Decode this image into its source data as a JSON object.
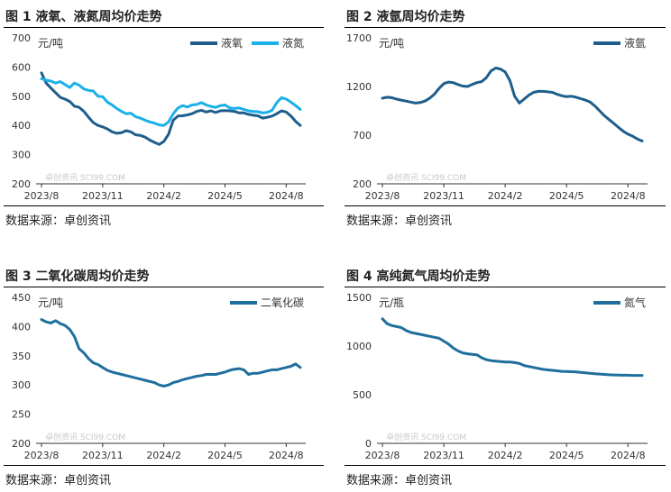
{
  "source_label": "数据来源：卓创资讯",
  "watermark": "卓创资讯 SCI99.COM",
  "chart_data": [
    {
      "type": "line",
      "title": "图 1  液氧、液氮周均价走势",
      "unit": "元/吨",
      "x_ticks": [
        "2023/8",
        "2023/11",
        "2024/2",
        "2024/5",
        "2024/8"
      ],
      "ylim": [
        200,
        700
      ],
      "y_ticks": [
        200,
        300,
        400,
        500,
        600,
        700
      ],
      "x_count": 56,
      "grid": false,
      "legend": "top-right",
      "series": [
        {
          "name": "液氧",
          "color": "#1f5e8c",
          "values": [
            580,
            545,
            528,
            512,
            496,
            490,
            482,
            466,
            462,
            448,
            428,
            410,
            400,
            395,
            388,
            378,
            373,
            375,
            382,
            378,
            368,
            366,
            360,
            350,
            342,
            335,
            345,
            370,
            418,
            432,
            433,
            436,
            440,
            448,
            452,
            446,
            450,
            444,
            450,
            451,
            450,
            448,
            443,
            443,
            438,
            435,
            433,
            425,
            428,
            432,
            440,
            450,
            446,
            432,
            414,
            400
          ]
        },
        {
          "name": "液氮",
          "color": "#1ab0e8",
          "values": [
            560,
            555,
            552,
            545,
            550,
            540,
            530,
            545,
            538,
            525,
            520,
            518,
            500,
            498,
            480,
            470,
            458,
            448,
            440,
            442,
            430,
            425,
            418,
            412,
            408,
            402,
            400,
            412,
            440,
            460,
            468,
            463,
            470,
            472,
            478,
            470,
            465,
            462,
            468,
            470,
            460,
            458,
            460,
            455,
            450,
            448,
            447,
            443,
            445,
            452,
            478,
            495,
            490,
            480,
            468,
            455
          ]
        }
      ]
    },
    {
      "type": "line",
      "title": "图 2  液氩周均价走势",
      "unit": "元/吨",
      "x_ticks": [
        "2023/8",
        "2023/11",
        "2024/2",
        "2024/5",
        "2024/8"
      ],
      "ylim": [
        200,
        1700
      ],
      "y_ticks": [
        200,
        700,
        1200,
        1700
      ],
      "x_count": 56,
      "grid": false,
      "legend": "top-right",
      "series": [
        {
          "name": "液氩",
          "color": "#1f5e8c",
          "values": [
            1080,
            1090,
            1085,
            1070,
            1060,
            1050,
            1040,
            1030,
            1035,
            1050,
            1080,
            1120,
            1180,
            1230,
            1245,
            1240,
            1220,
            1205,
            1200,
            1220,
            1240,
            1250,
            1290,
            1360,
            1390,
            1380,
            1350,
            1260,
            1100,
            1030,
            1070,
            1110,
            1140,
            1150,
            1150,
            1145,
            1140,
            1120,
            1105,
            1095,
            1100,
            1090,
            1075,
            1060,
            1040,
            1000,
            950,
            900,
            860,
            820,
            780,
            740,
            710,
            690,
            660,
            640
          ]
        }
      ]
    },
    {
      "type": "line",
      "title": "图 3  二氧化碳周均价走势",
      "unit": "元/吨",
      "x_ticks": [
        "2023/8",
        "2023/11",
        "2024/2",
        "2024/5",
        "2024/8"
      ],
      "ylim": [
        200,
        450
      ],
      "y_ticks": [
        200,
        250,
        300,
        350,
        400,
        450
      ],
      "x_count": 56,
      "grid": false,
      "legend": "top-right",
      "series": [
        {
          "name": "二氧化碳",
          "color": "#1f6f9e",
          "values": [
            412,
            408,
            406,
            410,
            405,
            402,
            395,
            383,
            362,
            355,
            345,
            338,
            335,
            330,
            325,
            322,
            320,
            318,
            316,
            314,
            312,
            310,
            308,
            306,
            304,
            300,
            298,
            300,
            304,
            306,
            309,
            311,
            313,
            315,
            316,
            318,
            318,
            318,
            320,
            322,
            325,
            327,
            328,
            326,
            318,
            320,
            320,
            322,
            324,
            326,
            326,
            328,
            330,
            332,
            336,
            330
          ]
        }
      ]
    },
    {
      "type": "line",
      "title": "图 4  高纯氮气周均价走势",
      "unit": "元/瓶",
      "x_ticks": [
        "2023/8",
        "2023/11",
        "2024/2",
        "2024/5",
        "2024/8"
      ],
      "ylim": [
        0,
        1500
      ],
      "y_ticks": [
        0,
        500,
        1000,
        1500
      ],
      "x_count": 56,
      "grid": false,
      "legend": "top-right",
      "series": [
        {
          "name": "氮气",
          "color": "#1f6f9e",
          "values": [
            1280,
            1230,
            1210,
            1200,
            1190,
            1160,
            1140,
            1130,
            1120,
            1110,
            1100,
            1090,
            1080,
            1050,
            1020,
            980,
            950,
            930,
            920,
            915,
            910,
            880,
            860,
            850,
            845,
            840,
            835,
            835,
            830,
            820,
            800,
            790,
            780,
            770,
            760,
            755,
            750,
            745,
            740,
            738,
            736,
            734,
            730,
            725,
            720,
            715,
            712,
            708,
            705,
            703,
            701,
            700,
            700,
            698,
            698,
            698
          ]
        }
      ]
    }
  ]
}
